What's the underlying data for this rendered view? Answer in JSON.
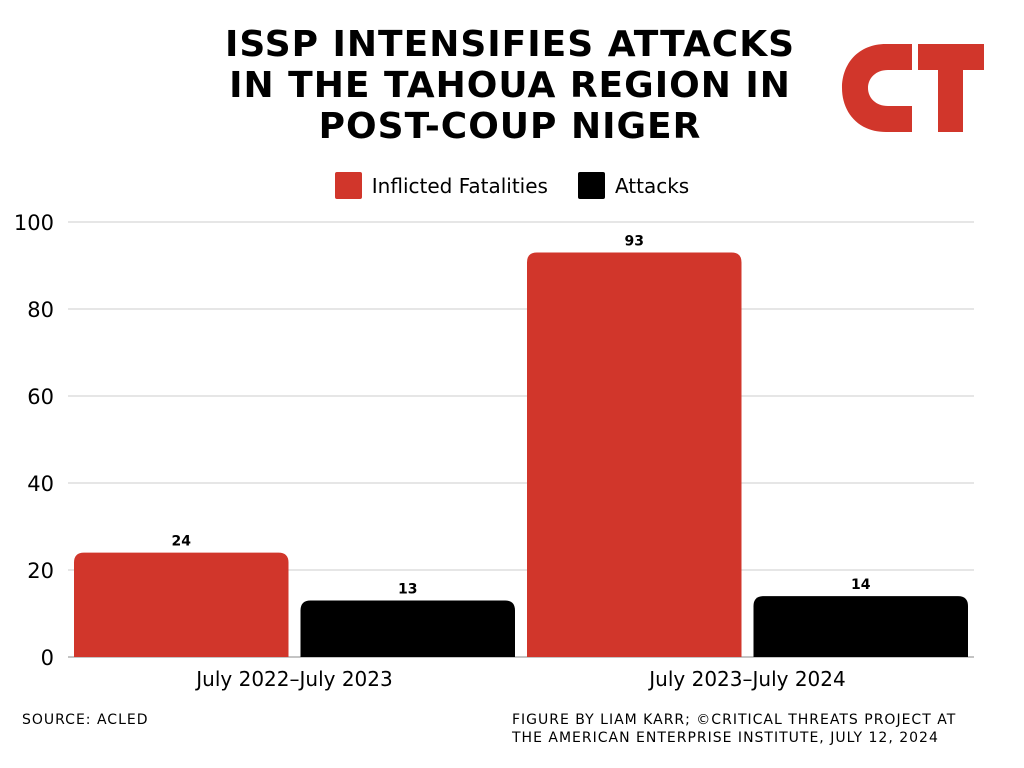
{
  "title_lines": [
    "ISSP INTENSIFIES ATTACKS",
    "IN THE TAHOUA REGION IN",
    "POST-COUP NIGER"
  ],
  "logo": {
    "text": "CT",
    "color": "#d1362b"
  },
  "footer": {
    "source": "SOURCE: ACLED",
    "credit_lines": [
      "FIGURE BY LIAM KARR; ©CRITICAL THREATS PROJECT AT",
      "THE AMERICAN ENTERPRISE INSTITUTE, JULY 12, 2024"
    ]
  },
  "chart_data": {
    "type": "bar",
    "title": "ISSP INTENSIFIES ATTACKS IN THE TAHOUA REGION IN POST-COUP NIGER",
    "xlabel": "",
    "ylabel": "",
    "categories": [
      "July 2022–July 2023",
      "July 2023–July 2024"
    ],
    "series": [
      {
        "name": "Inflicted Fatalities",
        "color": "#d1362b",
        "values": [
          24,
          93
        ]
      },
      {
        "name": "Attacks",
        "color": "#000000",
        "values": [
          13,
          14
        ]
      }
    ],
    "ylim": [
      0,
      100
    ],
    "yticks": [
      0,
      20,
      40,
      60,
      80,
      100
    ],
    "grid": true,
    "legend_position": "top-center",
    "data_labels": true
  }
}
